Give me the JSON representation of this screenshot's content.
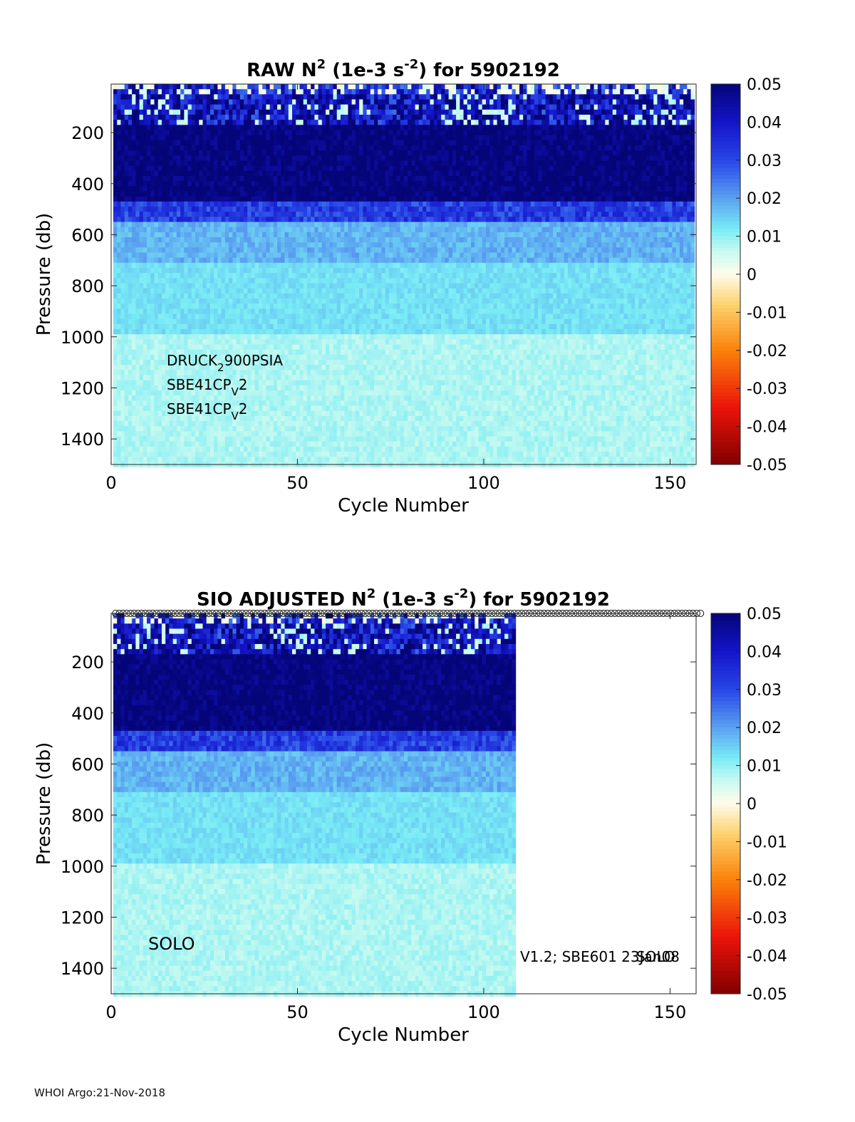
{
  "footer": "WHOI Argo:21-Nov-2018",
  "chart_data": [
    {
      "type": "heatmap",
      "title_main": "RAW N",
      "title_exp": "2",
      "title_mid": " (1e-3 s",
      "title_exp2": "-2",
      "title_end": ") for 5902192",
      "xlabel": "Cycle Number",
      "ylabel": "Pressure (db)",
      "xlim": [
        0,
        157
      ],
      "ylim": [
        1500,
        10
      ],
      "y_reversed": true,
      "xticks": [
        0,
        50,
        100,
        150
      ],
      "yticks": [
        200,
        400,
        600,
        800,
        1000,
        1200,
        1400
      ],
      "cycles_with_data": [
        1,
        156
      ],
      "colorbar": {
        "min": -0.05,
        "max": 0.05,
        "ticks": [
          "0.05",
          "0.04",
          "0.03",
          "0.02",
          "0.01",
          "0",
          "-0.01",
          "-0.02",
          "-0.03",
          "-0.04",
          "-0.05"
        ],
        "colormap": "diverging red-yellow-white-cyan-blue"
      },
      "approx_profile": [
        {
          "pressure_range": [
            10,
            170
          ],
          "value": "mixed 0 to 0.05"
        },
        {
          "pressure_range": [
            170,
            470
          ],
          "value": 0.05
        },
        {
          "pressure_range": [
            470,
            560
          ],
          "value": 0.03
        },
        {
          "pressure_range": [
            560,
            720
          ],
          "value": 0.018
        },
        {
          "pressure_range": [
            720,
            1000
          ],
          "value": 0.012
        },
        {
          "pressure_range": [
            1000,
            1500
          ],
          "value": 0.008
        }
      ],
      "annotations": [
        {
          "base": "DRUCK",
          "sub": "2",
          "rest": "900PSIA"
        },
        {
          "base": "SBE41CP",
          "sub": "V",
          "rest": "2"
        },
        {
          "base": "SBE41CP",
          "sub": "V",
          "rest": "2"
        }
      ]
    },
    {
      "type": "heatmap",
      "title_main": "SIO  ADJUSTED N",
      "title_exp": "2",
      "title_mid": " (1e-3 s",
      "title_exp2": "-2",
      "title_end": ") for 5902192",
      "xlabel": "Cycle Number",
      "ylabel": "Pressure (db)",
      "xlim": [
        0,
        157
      ],
      "ylim": [
        1500,
        10
      ],
      "y_reversed": true,
      "xticks": [
        0,
        50,
        100,
        150
      ],
      "yticks": [
        200,
        400,
        600,
        800,
        1000,
        1200,
        1400
      ],
      "cycles_with_data": [
        1,
        108
      ],
      "marker_cycles": [
        1,
        158
      ],
      "colorbar": {
        "min": -0.05,
        "max": 0.05,
        "ticks": [
          "0.05",
          "0.04",
          "0.03",
          "0.02",
          "0.01",
          "0",
          "-0.01",
          "-0.02",
          "-0.03",
          "-0.04",
          "-0.05"
        ],
        "colormap": "diverging red-yellow-white-cyan-blue"
      },
      "annotations": [
        {
          "text": "SOLO"
        },
        {
          "text": "V1.2; SBE601 23Jan08"
        },
        {
          "text": "SOLO"
        }
      ]
    }
  ]
}
